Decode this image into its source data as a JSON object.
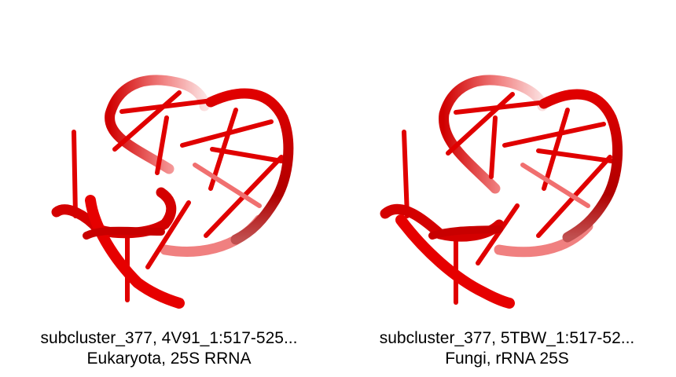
{
  "panels": [
    {
      "title": "subcluster_377, 4V91_1:517-525...",
      "subtitle": "Eukaryota, 25S RRNA"
    },
    {
      "title": "subcluster_377, 5TBW_1:517-52...",
      "subtitle": "Fungi, rRNA 25S"
    }
  ],
  "colors": {
    "backbone": "#e00000",
    "backbone_dark": "#a80000",
    "backbone_faded": "#f4b0b0",
    "background": "#ffffff"
  }
}
